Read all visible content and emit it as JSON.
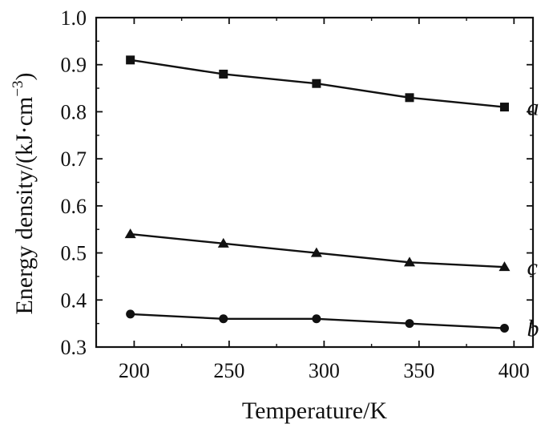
{
  "chart_data": {
    "type": "line",
    "title": "",
    "xlabel": "Temperature/K",
    "ylabel_main": "Energy density/(kJ·cm",
    "ylabel_sup": "−3",
    "ylabel_close": ")",
    "xlim": [
      180,
      410
    ],
    "ylim": [
      0.3,
      1.0
    ],
    "x_ticks": [
      200,
      250,
      300,
      350,
      400
    ],
    "x_tick_labels": [
      "200",
      "250",
      "300",
      "350",
      "400"
    ],
    "y_ticks": [
      0.3,
      0.4,
      0.5,
      0.6,
      0.7,
      0.8,
      0.9,
      1.0
    ],
    "y_tick_labels": [
      "0.3",
      "0.4",
      "0.5",
      "0.6",
      "0.7",
      "0.8",
      "0.9",
      "1.0"
    ],
    "grid": false,
    "series": [
      {
        "tag": "a",
        "marker": "square",
        "x": [
          198,
          247,
          296,
          345,
          395
        ],
        "y": [
          0.91,
          0.88,
          0.86,
          0.83,
          0.81
        ]
      },
      {
        "tag": "c",
        "marker": "triangle",
        "x": [
          198,
          247,
          296,
          345,
          395
        ],
        "y": [
          0.54,
          0.52,
          0.5,
          0.48,
          0.47
        ]
      },
      {
        "tag": "b",
        "marker": "circle",
        "x": [
          198,
          247,
          296,
          345,
          395
        ],
        "y": [
          0.37,
          0.36,
          0.36,
          0.35,
          0.34
        ]
      }
    ],
    "line_color": "#111111"
  }
}
